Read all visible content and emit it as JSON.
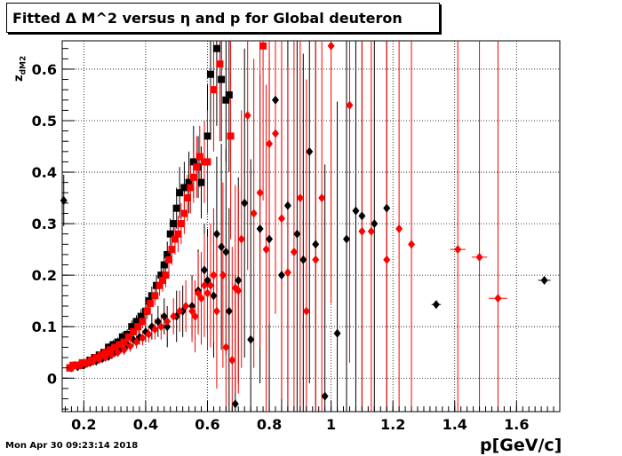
{
  "title": "Fitted Δ M^2 versus η and p for Global deuteron",
  "timestamp": "Mon Apr 30 09:23:14 2018",
  "colors": {
    "black_series": "#000000",
    "red_series": "#ff0000",
    "grid": "#000000"
  },
  "chart_data": {
    "type": "scatter",
    "title": "Fitted Δ M^2 versus η and p for Global deuteron",
    "xlabel": "p[GeV/c]",
    "ylabel": "z_{dM2}",
    "xlim": [
      0.13,
      1.74
    ],
    "ylim": [
      -0.065,
      0.655
    ],
    "xticks": [
      0.2,
      0.4,
      0.6,
      0.8,
      1,
      1.2,
      1.4,
      1.6
    ],
    "xtick_labels": [
      "0.2",
      "0.4",
      "0.6",
      "0.8",
      "1",
      "1.2",
      "1.4",
      "1.6"
    ],
    "yticks": [
      0,
      0.1,
      0.2,
      0.3,
      0.4,
      0.5,
      0.6
    ],
    "ytick_labels": [
      "0",
      "0.1",
      "0.2",
      "0.3",
      "0.4",
      "0.5",
      "0.6"
    ],
    "grid": true,
    "series": [
      {
        "color": "#000000",
        "marker": "square",
        "points": [
          [
            0.155,
            0.02,
            0.005
          ],
          [
            0.175,
            0.025,
            0.005
          ],
          [
            0.19,
            0.025,
            0.005
          ],
          [
            0.205,
            0.03,
            0.006
          ],
          [
            0.22,
            0.035,
            0.006
          ],
          [
            0.235,
            0.04,
            0.006
          ],
          [
            0.25,
            0.045,
            0.007
          ],
          [
            0.265,
            0.05,
            0.007
          ],
          [
            0.28,
            0.06,
            0.008
          ],
          [
            0.295,
            0.065,
            0.009
          ],
          [
            0.31,
            0.07,
            0.009
          ],
          [
            0.325,
            0.08,
            0.01
          ],
          [
            0.34,
            0.085,
            0.01
          ],
          [
            0.355,
            0.1,
            0.012
          ],
          [
            0.37,
            0.11,
            0.012
          ],
          [
            0.385,
            0.12,
            0.014
          ],
          [
            0.4,
            0.13,
            0.015
          ],
          [
            0.41,
            0.15,
            0.017
          ],
          [
            0.42,
            0.16,
            0.018
          ],
          [
            0.435,
            0.18,
            0.02
          ],
          [
            0.45,
            0.2,
            0.022
          ],
          [
            0.46,
            0.22,
            0.025
          ],
          [
            0.47,
            0.24,
            0.025
          ],
          [
            0.48,
            0.28,
            0.03
          ],
          [
            0.49,
            0.3,
            0.035
          ],
          [
            0.5,
            0.33,
            0.04
          ],
          [
            0.51,
            0.36,
            0.05
          ],
          [
            0.525,
            0.37,
            0.05
          ],
          [
            0.54,
            0.38,
            0.06
          ],
          [
            0.555,
            0.42,
            0.07
          ],
          [
            0.57,
            0.41,
            0.06
          ],
          [
            0.58,
            0.38,
            0.07
          ],
          [
            0.6,
            0.47,
            0.1
          ],
          [
            0.61,
            0.59,
            0.12
          ],
          [
            0.63,
            0.64,
            0.15
          ],
          [
            0.645,
            0.58,
            0.12
          ],
          [
            0.66,
            0.54,
            0.12
          ],
          [
            0.67,
            0.55,
            0.15
          ]
        ]
      },
      {
        "color": "#000000",
        "marker": "diamond",
        "points": [
          [
            0.135,
            0.345,
            0.05
          ],
          [
            0.16,
            0.02,
            0.004
          ],
          [
            0.18,
            0.022,
            0.005
          ],
          [
            0.2,
            0.025,
            0.005
          ],
          [
            0.22,
            0.03,
            0.006
          ],
          [
            0.24,
            0.033,
            0.006
          ],
          [
            0.26,
            0.038,
            0.007
          ],
          [
            0.28,
            0.042,
            0.008
          ],
          [
            0.3,
            0.05,
            0.009
          ],
          [
            0.32,
            0.058,
            0.01
          ],
          [
            0.34,
            0.065,
            0.011
          ],
          [
            0.36,
            0.075,
            0.013
          ],
          [
            0.38,
            0.08,
            0.015
          ],
          [
            0.4,
            0.09,
            0.02
          ],
          [
            0.42,
            0.1,
            0.025
          ],
          [
            0.44,
            0.11,
            0.03
          ],
          [
            0.46,
            0.12,
            0.035
          ],
          [
            0.47,
            0.1,
            0.04
          ],
          [
            0.5,
            0.12,
            0.05
          ],
          [
            0.52,
            0.13,
            0.05
          ],
          [
            0.55,
            0.14,
            0.06
          ],
          [
            0.57,
            0.17,
            0.08
          ],
          [
            0.59,
            0.21,
            0.09
          ],
          [
            0.6,
            0.19,
            0.1
          ],
          [
            0.62,
            0.16,
            0.12
          ],
          [
            0.63,
            0.28,
            0.15
          ],
          [
            0.645,
            0.255,
            0.2
          ],
          [
            0.66,
            0.245,
            0.2
          ],
          [
            0.67,
            0.13,
            0.2
          ],
          [
            0.69,
            -0.05,
            0.25
          ],
          [
            0.7,
            0.19,
            0.2
          ],
          [
            0.72,
            0.34,
            0.3
          ],
          [
            0.74,
            0.075,
            0.35
          ],
          [
            0.77,
            0.29,
            0.3
          ],
          [
            0.8,
            0.27,
            0.35
          ],
          [
            0.82,
            0.54,
            0.4
          ],
          [
            0.84,
            0.2,
            0.4
          ],
          [
            0.86,
            0.335,
            0.4
          ],
          [
            0.89,
            0.28,
            0.4
          ],
          [
            0.91,
            0.23,
            0.4
          ],
          [
            0.93,
            0.44,
            0.45
          ],
          [
            0.95,
            0.26,
            0.45
          ],
          [
            0.98,
            -0.035,
            0.45
          ],
          [
            1.02,
            0.087,
            0.45
          ],
          [
            1.05,
            0.27,
            0.4
          ],
          [
            1.08,
            0.325,
            0.4
          ],
          [
            1.1,
            0.315,
            0.4
          ],
          [
            1.14,
            0.3,
            0.45
          ],
          [
            1.18,
            0.33,
            0.45
          ],
          [
            1.34,
            0.143,
            0.0
          ],
          [
            1.69,
            0.19,
            0.0
          ]
        ],
        "xerr_points": [
          [
            1.34,
            0.015
          ],
          [
            1.69,
            0.02
          ]
        ]
      },
      {
        "color": "#ff0000",
        "marker": "square",
        "points": [
          [
            0.155,
            0.02,
            0.005
          ],
          [
            0.165,
            0.025,
            0.005
          ],
          [
            0.18,
            0.025,
            0.005
          ],
          [
            0.195,
            0.03,
            0.006
          ],
          [
            0.21,
            0.03,
            0.006
          ],
          [
            0.225,
            0.035,
            0.006
          ],
          [
            0.24,
            0.04,
            0.006
          ],
          [
            0.255,
            0.045,
            0.007
          ],
          [
            0.27,
            0.05,
            0.007
          ],
          [
            0.285,
            0.055,
            0.008
          ],
          [
            0.3,
            0.06,
            0.008
          ],
          [
            0.315,
            0.065,
            0.009
          ],
          [
            0.33,
            0.07,
            0.01
          ],
          [
            0.345,
            0.08,
            0.01
          ],
          [
            0.36,
            0.09,
            0.011
          ],
          [
            0.375,
            0.1,
            0.012
          ],
          [
            0.39,
            0.11,
            0.013
          ],
          [
            0.405,
            0.13,
            0.015
          ],
          [
            0.415,
            0.145,
            0.016
          ],
          [
            0.43,
            0.16,
            0.018
          ],
          [
            0.445,
            0.18,
            0.02
          ],
          [
            0.455,
            0.19,
            0.022
          ],
          [
            0.465,
            0.2,
            0.024
          ],
          [
            0.475,
            0.23,
            0.026
          ],
          [
            0.485,
            0.25,
            0.03
          ],
          [
            0.495,
            0.27,
            0.03
          ],
          [
            0.505,
            0.28,
            0.035
          ],
          [
            0.515,
            0.3,
            0.04
          ],
          [
            0.525,
            0.32,
            0.04
          ],
          [
            0.535,
            0.35,
            0.045
          ],
          [
            0.545,
            0.37,
            0.05
          ],
          [
            0.555,
            0.39,
            0.05
          ],
          [
            0.565,
            0.41,
            0.06
          ],
          [
            0.575,
            0.43,
            0.06
          ],
          [
            0.59,
            0.42,
            0.08
          ],
          [
            0.6,
            0.42,
            0.1
          ],
          [
            0.62,
            0.56,
            0.12
          ],
          [
            0.64,
            0.61,
            0.15
          ],
          [
            0.675,
            0.47,
            0.2
          ],
          [
            0.78,
            0.645,
            0.3
          ]
        ]
      },
      {
        "color": "#ff0000",
        "marker": "diamond",
        "points": [
          [
            0.17,
            0.025,
            0.005
          ],
          [
            0.19,
            0.025,
            0.005
          ],
          [
            0.21,
            0.028,
            0.005
          ],
          [
            0.23,
            0.032,
            0.006
          ],
          [
            0.25,
            0.036,
            0.006
          ],
          [
            0.27,
            0.04,
            0.007
          ],
          [
            0.29,
            0.045,
            0.008
          ],
          [
            0.31,
            0.05,
            0.009
          ],
          [
            0.33,
            0.055,
            0.01
          ],
          [
            0.35,
            0.062,
            0.011
          ],
          [
            0.37,
            0.07,
            0.012
          ],
          [
            0.39,
            0.078,
            0.014
          ],
          [
            0.41,
            0.085,
            0.016
          ],
          [
            0.43,
            0.095,
            0.02
          ],
          [
            0.45,
            0.1,
            0.025
          ],
          [
            0.47,
            0.11,
            0.03
          ],
          [
            0.49,
            0.12,
            0.035
          ],
          [
            0.51,
            0.13,
            0.04
          ],
          [
            0.53,
            0.14,
            0.05
          ],
          [
            0.55,
            0.13,
            0.06
          ],
          [
            0.56,
            0.12,
            0.07
          ],
          [
            0.57,
            0.165,
            0.08
          ],
          [
            0.58,
            0.155,
            0.09
          ],
          [
            0.59,
            0.18,
            0.1
          ],
          [
            0.6,
            0.165,
            0.11
          ],
          [
            0.61,
            0.18,
            0.12
          ],
          [
            0.62,
            0.2,
            0.13
          ],
          [
            0.63,
            0.13,
            0.15
          ],
          [
            0.65,
            0.2,
            0.18
          ],
          [
            0.66,
            0.06,
            0.2
          ],
          [
            0.68,
            0.035,
            0.22
          ],
          [
            0.69,
            0.175,
            0.2
          ],
          [
            0.7,
            0.17,
            0.2
          ],
          [
            0.71,
            0.27,
            0.25
          ],
          [
            0.73,
            0.51,
            0.3
          ],
          [
            0.75,
            0.32,
            0.3
          ],
          [
            0.77,
            0.36,
            0.3
          ],
          [
            0.79,
            0.25,
            0.32
          ],
          [
            0.8,
            0.455,
            0.35
          ],
          [
            0.82,
            0.475,
            0.35
          ],
          [
            0.84,
            0.31,
            0.35
          ],
          [
            0.86,
            0.205,
            0.4
          ],
          [
            0.88,
            0.245,
            0.45
          ],
          [
            0.9,
            0.35,
            0.45
          ],
          [
            0.92,
            0.13,
            0.45
          ],
          [
            0.95,
            0.23,
            0.45
          ],
          [
            0.97,
            0.35,
            0.5
          ],
          [
            1.0,
            0.645,
            0.5
          ],
          [
            1.06,
            0.53,
            0.5
          ],
          [
            1.1,
            0.285,
            0.5
          ],
          [
            1.13,
            0.285,
            0.55
          ],
          [
            1.18,
            0.23,
            0.55
          ],
          [
            1.22,
            0.29,
            0.55
          ],
          [
            1.26,
            0.26,
            0.55
          ],
          [
            1.41,
            0.25,
            0.6
          ],
          [
            1.48,
            0.235,
            0.6
          ],
          [
            1.54,
            0.155,
            0.6
          ]
        ],
        "xerr_points": [
          [
            1.41,
            0.025
          ],
          [
            1.48,
            0.025
          ],
          [
            1.54,
            0.03
          ]
        ]
      }
    ]
  }
}
